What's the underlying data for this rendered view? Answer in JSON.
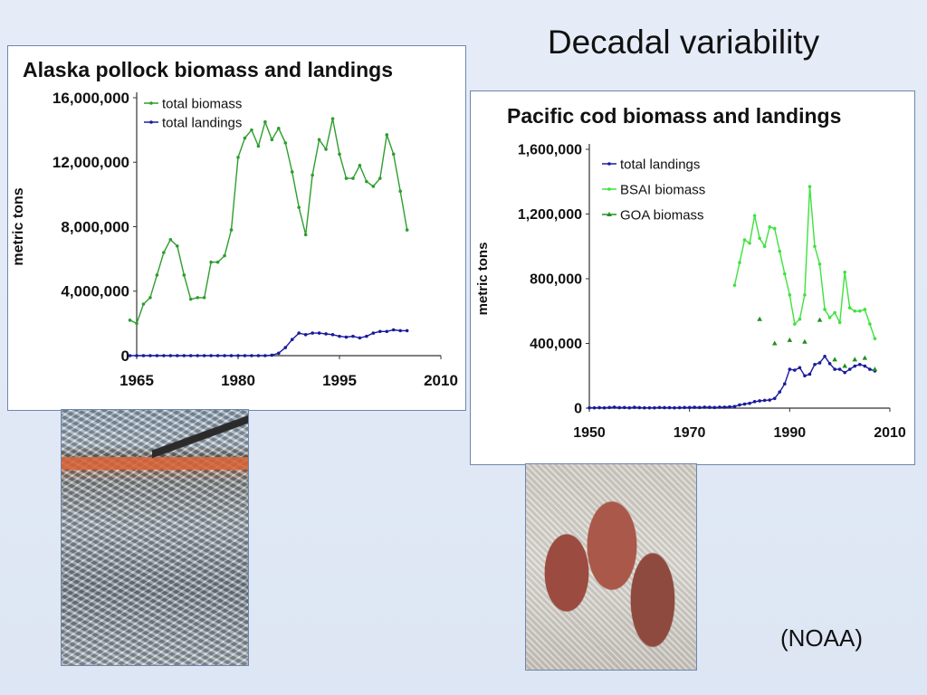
{
  "slide": {
    "title": "Decadal variability",
    "source": "(NOAA)"
  },
  "photos": {
    "pollock_icon": "fish-catch-photo-icon",
    "cod_icon": "cod-photo-icon"
  },
  "chart_data": [
    {
      "type": "line",
      "title": "Alaska pollock biomass and landings",
      "ylabel": "metric tons",
      "xlabel": "",
      "xlim": [
        1965,
        2010
      ],
      "ylim": [
        0,
        16000000
      ],
      "xticks": [
        1965,
        1980,
        1995,
        2010
      ],
      "yticks": [
        0,
        4000000,
        8000000,
        12000000,
        16000000
      ],
      "ytick_labels": [
        "0",
        "4,000,000",
        "8,000,000",
        "12,000,000",
        "16,000,000"
      ],
      "legend": "top-left",
      "grid": false,
      "series": [
        {
          "name": "total biomass",
          "color": "#2e9e2e",
          "marker": "circle",
          "x": [
            1964,
            1965,
            1966,
            1967,
            1968,
            1969,
            1970,
            1971,
            1972,
            1973,
            1974,
            1975,
            1976,
            1977,
            1978,
            1979,
            1980,
            1981,
            1982,
            1983,
            1984,
            1985,
            1986,
            1987,
            1988,
            1989,
            1990,
            1991,
            1992,
            1993,
            1994,
            1995,
            1996,
            1997,
            1998,
            1999,
            2000,
            2001,
            2002,
            2003,
            2004,
            2005
          ],
          "y": [
            2200000,
            2000000,
            3200000,
            3600000,
            5000000,
            6400000,
            7200000,
            6800000,
            5000000,
            3500000,
            3600000,
            3600000,
            5800000,
            5800000,
            6200000,
            7800000,
            12300000,
            13500000,
            14000000,
            13000000,
            14500000,
            13400000,
            14100000,
            13200000,
            11400000,
            9200000,
            7500000,
            11200000,
            13400000,
            12800000,
            14700000,
            12500000,
            11000000,
            11000000,
            11800000,
            10800000,
            10500000,
            11000000,
            13700000,
            12500000,
            10200000,
            7800000
          ]
        },
        {
          "name": "total landings",
          "color": "#1a1a9c",
          "marker": "circle",
          "x": [
            1964,
            1965,
            1966,
            1967,
            1968,
            1969,
            1970,
            1971,
            1972,
            1973,
            1974,
            1975,
            1976,
            1977,
            1978,
            1979,
            1980,
            1981,
            1982,
            1983,
            1984,
            1985,
            1986,
            1987,
            1988,
            1989,
            1990,
            1991,
            1992,
            1993,
            1994,
            1995,
            1996,
            1997,
            1998,
            1999,
            2000,
            2001,
            2002,
            2003,
            2004,
            2005
          ],
          "y": [
            0,
            0,
            0,
            0,
            0,
            0,
            0,
            0,
            0,
            0,
            0,
            0,
            0,
            0,
            0,
            0,
            0,
            0,
            0,
            0,
            0,
            30000,
            150000,
            500000,
            1000000,
            1400000,
            1300000,
            1400000,
            1400000,
            1350000,
            1300000,
            1200000,
            1150000,
            1200000,
            1100000,
            1200000,
            1400000,
            1500000,
            1500000,
            1600000,
            1550000,
            1550000
          ]
        }
      ]
    },
    {
      "type": "line",
      "title": "Pacific cod biomass and landings",
      "ylabel": "metric tons",
      "xlabel": "",
      "xlim": [
        1950,
        2010
      ],
      "ylim": [
        0,
        1600000
      ],
      "xticks": [
        1950,
        1970,
        1990,
        2010
      ],
      "yticks": [
        0,
        400000,
        800000,
        1200000,
        1600000
      ],
      "ytick_labels": [
        "0",
        "400,000",
        "800,000",
        "1,200,000",
        "1,600,000"
      ],
      "legend": "top-left",
      "grid": false,
      "series": [
        {
          "name": "total landings",
          "color": "#1a1a9c",
          "marker": "circle",
          "x": [
            1950,
            1951,
            1952,
            1953,
            1954,
            1955,
            1956,
            1957,
            1958,
            1959,
            1960,
            1961,
            1962,
            1963,
            1964,
            1965,
            1966,
            1967,
            1968,
            1969,
            1970,
            1971,
            1972,
            1973,
            1974,
            1975,
            1976,
            1977,
            1978,
            1979,
            1980,
            1981,
            1982,
            1983,
            1984,
            1985,
            1986,
            1987,
            1988,
            1989,
            1990,
            1991,
            1992,
            1993,
            1994,
            1995,
            1996,
            1997,
            1998,
            1999,
            2000,
            2001,
            2002,
            2003,
            2004,
            2005,
            2006,
            2007
          ],
          "y": [
            2000,
            2000,
            3000,
            2000,
            4000,
            6000,
            3000,
            4000,
            2000,
            5000,
            3000,
            2000,
            2000,
            2000,
            4000,
            3000,
            3000,
            2000,
            3000,
            4000,
            4000,
            5000,
            4000,
            6000,
            5000,
            4000,
            6000,
            6000,
            8000,
            10000,
            20000,
            25000,
            30000,
            40000,
            45000,
            48000,
            50000,
            60000,
            100000,
            150000,
            240000,
            235000,
            250000,
            200000,
            210000,
            270000,
            280000,
            320000,
            275000,
            240000,
            240000,
            220000,
            240000,
            260000,
            270000,
            260000,
            240000,
            230000
          ]
        },
        {
          "name": "BSAI biomass",
          "color": "#3ee23e",
          "marker": "circle",
          "x": [
            1979,
            1980,
            1981,
            1982,
            1983,
            1984,
            1985,
            1986,
            1987,
            1988,
            1989,
            1990,
            1991,
            1992,
            1993,
            1994,
            1995,
            1996,
            1997,
            1998,
            1999,
            2000,
            2001,
            2002,
            2003,
            2004,
            2005,
            2006,
            2007
          ],
          "y": [
            760000,
            900000,
            1040000,
            1020000,
            1190000,
            1050000,
            1000000,
            1120000,
            1110000,
            970000,
            830000,
            700000,
            520000,
            550000,
            700000,
            1370000,
            1000000,
            890000,
            610000,
            560000,
            590000,
            530000,
            840000,
            620000,
            600000,
            600000,
            610000,
            520000,
            430000
          ]
        },
        {
          "name": "GOA biomass",
          "color": "#1f8f1f",
          "marker": "triangle",
          "x": [
            1984,
            1987,
            1990,
            1993,
            1996,
            1999,
            2001,
            2003,
            2005,
            2007
          ],
          "y": [
            550000,
            400000,
            420000,
            410000,
            545000,
            300000,
            260000,
            300000,
            310000,
            240000
          ]
        }
      ]
    }
  ]
}
